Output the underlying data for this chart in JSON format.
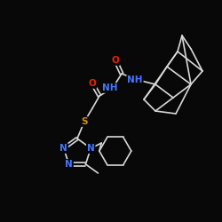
{
  "background": "#080808",
  "bond_color": "#d8d8d8",
  "atom_colors": {
    "O": "#ee2200",
    "N": "#4477ff",
    "S": "#cc9900",
    "C": "#d8d8d8"
  },
  "bond_lw": 1.2,
  "font_size": 7.5
}
